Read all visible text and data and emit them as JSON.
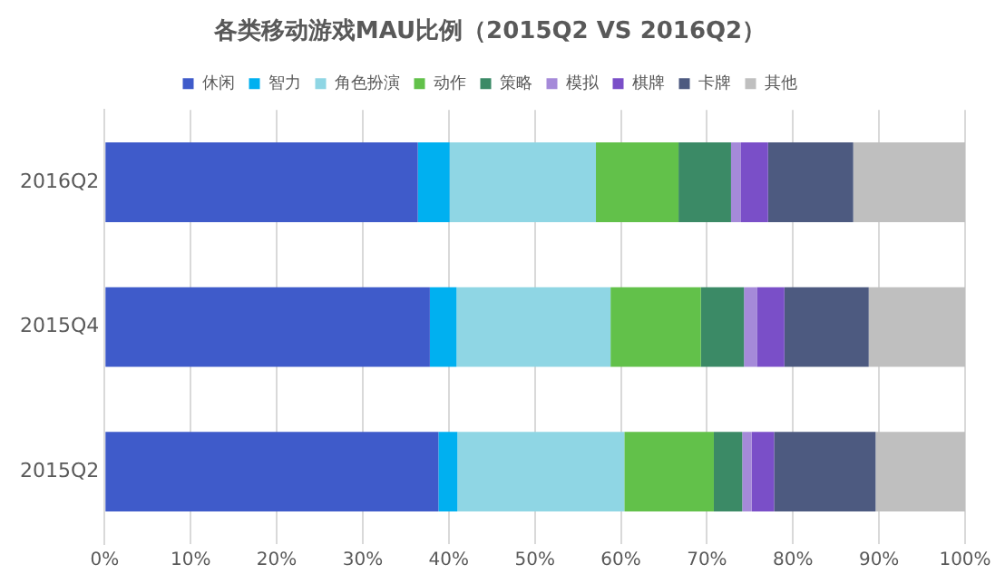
{
  "chart_data": {
    "type": "bar",
    "orientation": "horizontal",
    "stacked": true,
    "title": "各类移动游戏MAU比例（2015Q2 VS 2016Q2）",
    "categories": [
      "2016Q2",
      "2015Q4",
      "2015Q2"
    ],
    "series": [
      {
        "name": "休闲",
        "color": "#3f5bca",
        "values": [
          36.4,
          37.8,
          38.8
        ]
      },
      {
        "name": "智力",
        "color": "#00b0f0",
        "values": [
          3.7,
          3.1,
          2.2
        ]
      },
      {
        "name": "角色扮演",
        "color": "#8fd6e4",
        "values": [
          17.0,
          17.9,
          19.4
        ]
      },
      {
        "name": "动作",
        "color": "#62c14a",
        "values": [
          9.6,
          10.5,
          10.4
        ]
      },
      {
        "name": "策略",
        "color": "#3b8a66",
        "values": [
          6.1,
          5.0,
          3.3
        ]
      },
      {
        "name": "模拟",
        "color": "#a58ad9",
        "values": [
          1.1,
          1.5,
          1.1
        ]
      },
      {
        "name": "棋牌",
        "color": "#7a4fc8",
        "values": [
          3.2,
          3.2,
          2.6
        ]
      },
      {
        "name": "卡牌",
        "color": "#4d5a80",
        "values": [
          9.9,
          9.8,
          11.8
        ]
      },
      {
        "name": "其他",
        "color": "#bfbfbf",
        "values": [
          13.0,
          11.2,
          10.4
        ]
      }
    ],
    "xlim": [
      0,
      100
    ],
    "xticks": [
      {
        "value": 0,
        "label": "0%"
      },
      {
        "value": 10,
        "label": "10%"
      },
      {
        "value": 20,
        "label": "20%"
      },
      {
        "value": 30,
        "label": "30%"
      },
      {
        "value": 40,
        "label": "40%"
      },
      {
        "value": 50,
        "label": "50%"
      },
      {
        "value": 60,
        "label": "60%"
      },
      {
        "value": 70,
        "label": "70%"
      },
      {
        "value": 80,
        "label": "80%"
      },
      {
        "value": 90,
        "label": "90%"
      },
      {
        "value": 100,
        "label": "100%"
      }
    ],
    "grid": "x",
    "legend": "top"
  }
}
